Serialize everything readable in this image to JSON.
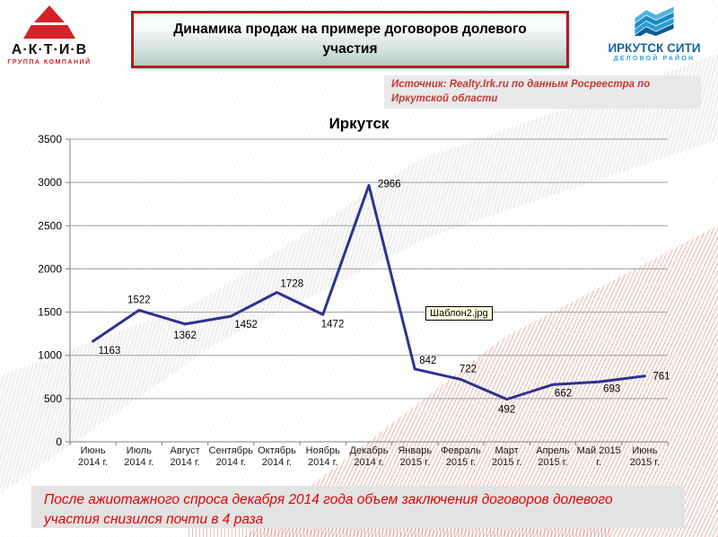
{
  "header": {
    "title": "Динамика продаж на примере договоров долевого участия",
    "aktiv_logo": {
      "name": "А·К·Т·И·В",
      "tagline": "ГРУППА КОМПАНИЙ"
    },
    "city_logo": {
      "name": "ИРКУТСК СИТИ",
      "tagline": "ДЕЛОВОЙ РАЙОН"
    }
  },
  "source_note": "Источник: Realty.Irk.ru по данным Росреестра по Иркутской области",
  "file_tooltip": "Шаблон2.jpg",
  "footer_note_lines": [
    "После ажиотажного спроса декабря 2014 года  объем заключения договоров долевого",
    "участия снизился почти в 4 раза"
  ],
  "colors": {
    "accent_red": "#cc0000",
    "line_blue": "#2e3192",
    "banner_text": "#e00404",
    "source_text": "#c23b35",
    "logo_red": "#d2232a",
    "logo_blue_dark": "#19669a",
    "logo_blue_light": "#33a0d6"
  },
  "chart_data": {
    "type": "line",
    "title": "Иркутск",
    "categories": [
      "Июнь 2014 г.",
      "Июль 2014 г.",
      "Август 2014 г.",
      "Сентябрь 2014 г.",
      "Октябрь 2014 г.",
      "Ноябрь 2014 г.",
      "Декабрь 2014 г.",
      "Январь 2015 г.",
      "Февраль 2015 г.",
      "Март 2015 г.",
      "Апрель 2015 г.",
      "Май 2015 г.",
      "Июнь 2015 г."
    ],
    "category_lines": [
      [
        "Июнь",
        "2014 г."
      ],
      [
        "Июль",
        "2014 г."
      ],
      [
        "Август",
        "2014 г."
      ],
      [
        "Сентябрь",
        "2014 г."
      ],
      [
        "Октябрь",
        "2014 г."
      ],
      [
        "Ноябрь",
        "2014 г."
      ],
      [
        "Декабрь",
        "2014 г."
      ],
      [
        "Январь",
        "2015 г."
      ],
      [
        "Февраль",
        "2015 г."
      ],
      [
        "Март",
        "2015 г."
      ],
      [
        "Апрель",
        "2015 г."
      ],
      [
        "Май 2015",
        "г."
      ],
      [
        "Июнь",
        "2015 г."
      ]
    ],
    "values": [
      1163,
      1522,
      1362,
      1452,
      1728,
      1472,
      2966,
      842,
      722,
      492,
      662,
      693,
      761
    ],
    "xlabel": "",
    "ylabel": "",
    "ylim": [
      0,
      3500
    ],
    "ytick_step": 500,
    "grid": true,
    "legend": "none",
    "line_color": "#2e3192"
  }
}
